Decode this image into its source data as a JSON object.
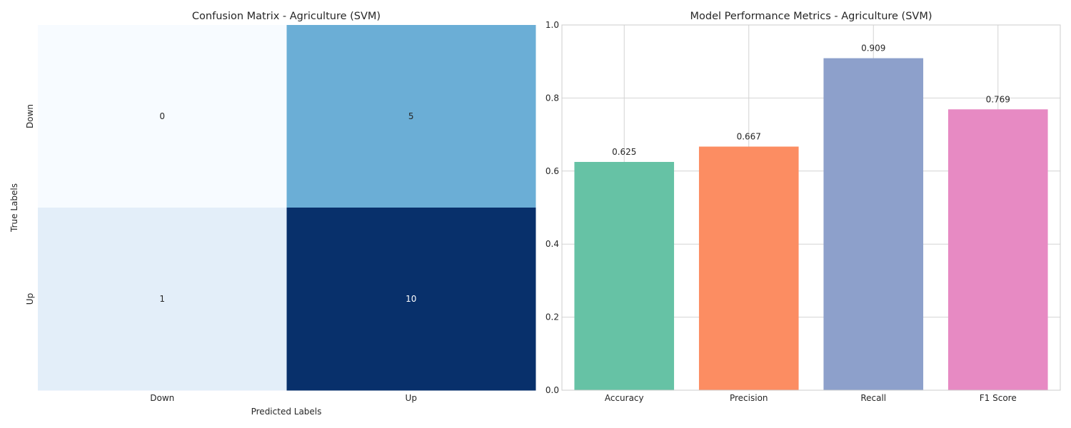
{
  "chart_data": [
    {
      "type": "heatmap",
      "title": "Confusion Matrix - Agriculture (SVM)",
      "xlabel": "Predicted Labels",
      "ylabel": "True Labels",
      "x_categories": [
        "Down",
        "Up"
      ],
      "y_categories": [
        "Down",
        "Up"
      ],
      "values": [
        [
          0,
          5
        ],
        [
          1,
          10
        ]
      ],
      "colormap": "Blues",
      "colorbar": false
    },
    {
      "type": "bar",
      "title": "Model Performance Metrics - Agriculture (SVM)",
      "categories": [
        "Accuracy",
        "Precision",
        "Recall",
        "F1 Score"
      ],
      "values": [
        0.625,
        0.667,
        0.909,
        0.769
      ],
      "value_labels": [
        "0.625",
        "0.667",
        "0.909",
        "0.769"
      ],
      "colors": [
        "#66c2a5",
        "#fc8d62",
        "#8da0cb",
        "#e78ac3"
      ],
      "xlabel": "",
      "ylabel": "",
      "ylim": [
        0,
        1.0
      ],
      "yticks": [
        "0.0",
        "0.2",
        "0.4",
        "0.6",
        "0.8",
        "1.0"
      ],
      "grid": true
    }
  ]
}
